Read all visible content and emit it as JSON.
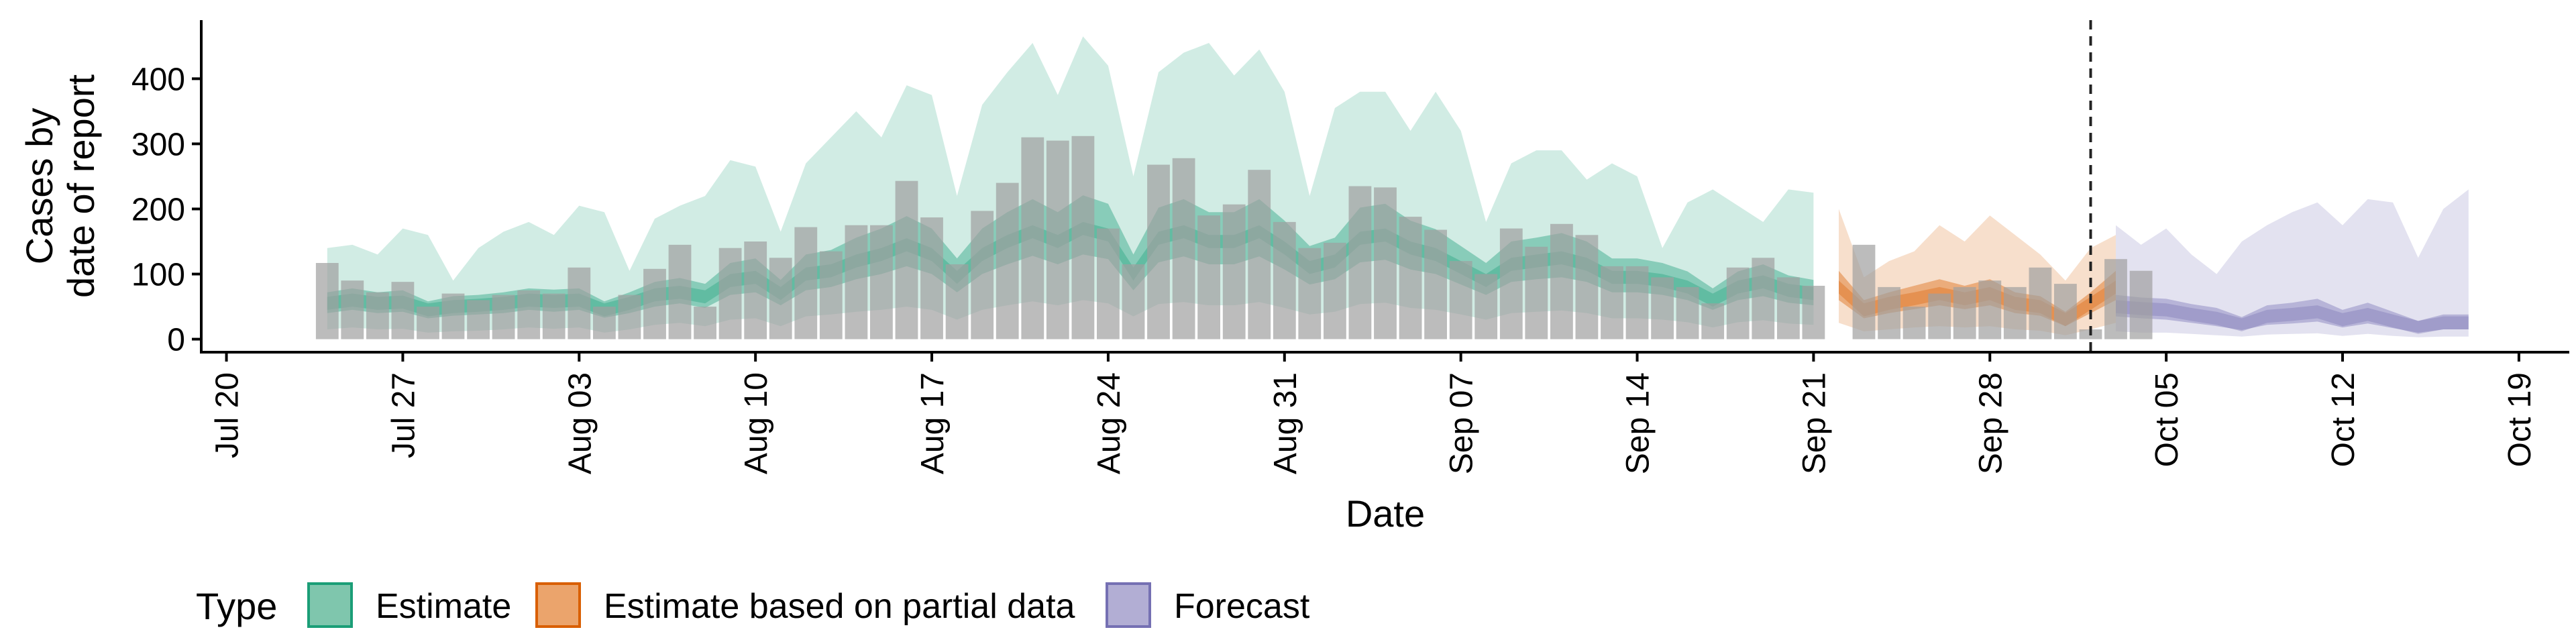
{
  "chart_data": {
    "type": "bar",
    "xlabel": "Date",
    "ylabel_lines": [
      "Cases by",
      "date of report"
    ],
    "x_tick_labels": [
      "Jul 20",
      "Jul 27",
      "Aug 03",
      "Aug 10",
      "Aug 17",
      "Aug 24",
      "Aug 31",
      "Sep 07",
      "Sep 14",
      "Sep 21",
      "Sep 28",
      "Oct 05",
      "Oct 12",
      "Oct 19"
    ],
    "x_tick_dates": [
      "2020-07-20",
      "2020-07-27",
      "2020-08-03",
      "2020-08-10",
      "2020-08-17",
      "2020-08-24",
      "2020-08-31",
      "2020-09-07",
      "2020-09-14",
      "2020-09-21",
      "2020-09-28",
      "2020-10-05",
      "2020-10-12",
      "2020-10-19"
    ],
    "xlim": [
      "2020-07-19",
      "2020-10-21"
    ],
    "y_ticks": [
      0,
      100,
      200,
      300,
      400
    ],
    "ylim": [
      -20,
      490
    ],
    "grid": false,
    "vline_date": "2020-10-02",
    "legend": {
      "title": "Type",
      "position": "bottom",
      "items": [
        {
          "label": "Estimate",
          "fill": "#7fc6ad",
          "stroke": "#1b9e77"
        },
        {
          "label": "Estimate based on partial data",
          "fill": "#eba46c",
          "stroke": "#d95f02"
        },
        {
          "label": "Forecast",
          "fill": "#b2aed4",
          "stroke": "#7570b3"
        }
      ]
    },
    "colors": {
      "Estimate": "#1b9e77",
      "Estimate based on partial data": "#d95f02",
      "Forecast": "#7570b3",
      "bars": "#a0a0a0"
    },
    "reported_cases": {
      "start_date": "2020-07-24",
      "values": [
        117,
        90,
        72,
        88,
        50,
        70,
        60,
        68,
        75,
        70,
        110,
        50,
        68,
        108,
        145,
        50,
        140,
        150,
        125,
        172,
        135,
        175,
        175,
        243,
        187,
        115,
        197,
        240,
        310,
        305,
        312,
        170,
        115,
        268,
        278,
        190,
        207,
        260,
        180,
        140,
        148,
        235,
        233,
        188,
        168,
        120,
        100,
        170,
        142,
        177,
        160,
        112,
        112,
        95,
        80,
        55,
        110,
        125,
        95,
        82,
        0,
        145,
        80,
        50,
        70,
        80,
        90,
        80,
        110,
        85,
        15,
        123,
        105
      ]
    },
    "series": [
      {
        "name": "Estimate",
        "start_date": "2020-07-24",
        "median": [
          55,
          60,
          55,
          57,
          45,
          50,
          52,
          55,
          60,
          58,
          60,
          45,
          55,
          68,
          72,
          65,
          90,
          95,
          70,
          100,
          105,
          120,
          130,
          145,
          130,
          95,
          130,
          150,
          165,
          150,
          170,
          160,
          100,
          155,
          165,
          150,
          150,
          165,
          140,
          110,
          120,
          155,
          160,
          140,
          130,
          110,
          90,
          115,
          120,
          125,
          115,
          95,
          95,
          90,
          80,
          60,
          80,
          88,
          75,
          70
        ],
        "lower_50": [
          40,
          45,
          40,
          42,
          32,
          36,
          38,
          40,
          45,
          42,
          45,
          33,
          40,
          50,
          55,
          48,
          68,
          72,
          52,
          75,
          80,
          92,
          100,
          112,
          100,
          72,
          100,
          115,
          128,
          115,
          130,
          123,
          75,
          118,
          127,
          115,
          115,
          127,
          107,
          84,
          92,
          118,
          122,
          107,
          100,
          84,
          68,
          88,
          92,
          95,
          88,
          72,
          72,
          68,
          60,
          45,
          60,
          66,
          56,
          52
        ],
        "upper_50": [
          72,
          78,
          72,
          75,
          58,
          66,
          68,
          72,
          78,
          76,
          78,
          58,
          72,
          88,
          94,
          85,
          117,
          124,
          91,
          130,
          137,
          156,
          170,
          189,
          170,
          124,
          170,
          195,
          215,
          195,
          221,
          208,
          130,
          202,
          215,
          195,
          195,
          215,
          182,
          143,
          156,
          202,
          208,
          182,
          169,
          143,
          117,
          150,
          156,
          163,
          150,
          124,
          124,
          117,
          104,
          78,
          104,
          115,
          98,
          91
        ],
        "lower_90": [
          15,
          18,
          15,
          16,
          10,
          12,
          13,
          15,
          18,
          16,
          18,
          10,
          15,
          22,
          25,
          20,
          30,
          32,
          20,
          35,
          38,
          42,
          45,
          50,
          45,
          30,
          45,
          52,
          58,
          52,
          60,
          55,
          35,
          54,
          57,
          52,
          52,
          57,
          48,
          38,
          42,
          54,
          56,
          48,
          45,
          38,
          30,
          40,
          42,
          44,
          40,
          32,
          32,
          30,
          26,
          18,
          26,
          29,
          24,
          22
        ],
        "upper_90": [
          140,
          145,
          130,
          170,
          160,
          90,
          140,
          165,
          180,
          160,
          205,
          195,
          105,
          185,
          205,
          220,
          275,
          265,
          165,
          270,
          310,
          350,
          310,
          390,
          375,
          220,
          360,
          410,
          455,
          375,
          465,
          420,
          250,
          410,
          440,
          455,
          405,
          445,
          380,
          220,
          355,
          380,
          380,
          320,
          380,
          320,
          180,
          270,
          290,
          290,
          245,
          270,
          250,
          140,
          210,
          230,
          205,
          180,
          230,
          225
        ]
      },
      {
        "name": "Estimate based on partial data",
        "start_date": "2020-09-22",
        "median": [
          80,
          45,
          55,
          62,
          70,
          62,
          70,
          55,
          50,
          30,
          55,
          80
        ],
        "lower_50": [
          60,
          32,
          40,
          46,
          52,
          46,
          52,
          40,
          36,
          20,
          40,
          60
        ],
        "upper_50": [
          105,
          60,
          72,
          82,
          92,
          82,
          92,
          72,
          66,
          42,
          72,
          105
        ],
        "lower_90": [
          25,
          12,
          15,
          18,
          20,
          18,
          20,
          15,
          13,
          6,
          15,
          25
        ],
        "upper_90": [
          200,
          95,
          120,
          135,
          175,
          150,
          190,
          160,
          130,
          90,
          140,
          160
        ]
      },
      {
        "name": "Forecast",
        "start_date": "2020-10-03",
        "median": [
          50,
          47,
          45,
          38,
          32,
          22,
          35,
          38,
          42,
          30,
          38,
          28,
          18,
          25,
          25
        ],
        "lower_50": [
          35,
          32,
          30,
          25,
          20,
          14,
          22,
          24,
          27,
          18,
          24,
          17,
          10,
          15,
          15
        ],
        "upper_50": [
          68,
          64,
          62,
          54,
          48,
          34,
          52,
          56,
          62,
          45,
          56,
          42,
          28,
          38,
          38
        ],
        "lower_90": [
          12,
          10,
          10,
          8,
          6,
          4,
          7,
          8,
          9,
          5,
          8,
          5,
          3,
          4,
          4
        ],
        "upper_90": [
          175,
          145,
          170,
          130,
          100,
          150,
          175,
          195,
          210,
          175,
          215,
          210,
          125,
          200,
          230
        ]
      }
    ]
  }
}
